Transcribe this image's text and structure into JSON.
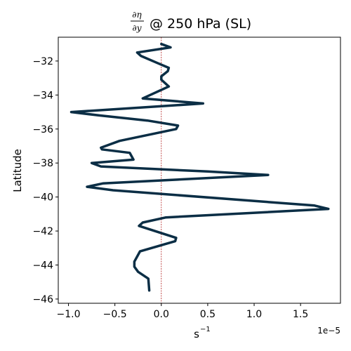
{
  "chart_data": {
    "type": "line",
    "title": {
      "numerator": "∂η",
      "denominator": "∂y",
      "suffix": "@ 250 hPa (SL)"
    },
    "xlabel": "s",
    "xlabel_exponent": "−1",
    "ylabel": "Latitude",
    "offset_text": "1e−5",
    "x_scale": 1e-05,
    "xlim": [
      -1.11,
      1.93
    ],
    "ylim": [
      -46.25,
      -30.6
    ],
    "x_ticks": [
      -1.0,
      -0.5,
      0.0,
      0.5,
      1.0,
      1.5
    ],
    "x_tick_labels": [
      "−1.0",
      "−0.5",
      "0.0",
      "0.5",
      "1.0",
      "1.5"
    ],
    "y_ticks": [
      -32,
      -34,
      -36,
      -38,
      -40,
      -42,
      -44,
      -46
    ],
    "y_tick_labels": [
      "−32",
      "−34",
      "−36",
      "−38",
      "−40",
      "−42",
      "−44",
      "−46"
    ],
    "reference_line_x": 0.0,
    "grid": false,
    "colors": {
      "series": "#0b2e45",
      "reference": "#b22222"
    },
    "series": [
      {
        "x": [
          0.0,
          0.1,
          -0.26,
          -0.22,
          -0.05,
          0.08,
          0.07,
          0.0,
          0.0,
          0.08,
          -0.2,
          0.45,
          -0.97,
          -0.67,
          -0.15,
          0.18,
          0.16,
          -0.45,
          -0.65,
          -0.64,
          -0.34,
          -0.3,
          -0.75,
          -0.65,
          0.5,
          1.15,
          -0.63,
          -0.8,
          -0.52,
          1.65,
          1.8,
          0.05,
          -0.2,
          -0.24,
          0.16,
          0.15,
          -0.23,
          -0.29,
          -0.29,
          -0.25,
          -0.14,
          -0.13
        ],
        "y": [
          -31.0,
          -31.2,
          -31.5,
          -31.7,
          -32.1,
          -32.4,
          -32.6,
          -32.9,
          -33.1,
          -33.5,
          -34.2,
          -34.5,
          -35.0,
          -35.2,
          -35.5,
          -35.8,
          -36.0,
          -36.7,
          -37.1,
          -37.2,
          -37.4,
          -37.8,
          -38.0,
          -38.2,
          -38.5,
          -38.7,
          -39.2,
          -39.4,
          -39.6,
          -40.5,
          -40.7,
          -41.2,
          -41.5,
          -41.7,
          -42.4,
          -42.6,
          -43.2,
          -43.8,
          -44.1,
          -44.4,
          -44.8,
          -45.5
        ]
      }
    ]
  }
}
